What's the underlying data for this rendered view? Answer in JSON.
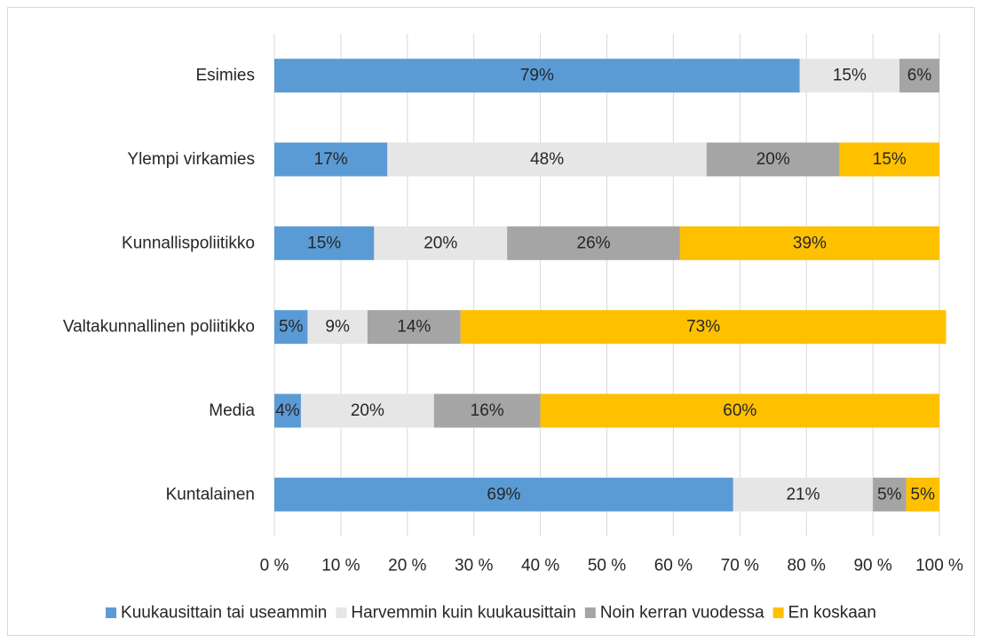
{
  "chart_data": {
    "type": "bar",
    "orientation": "horizontal",
    "stacked": "percent",
    "categories": [
      "Esimies",
      "Ylempi virkamies",
      "Kunnallispoliitikko",
      "Valtakunnallinen poliitikko",
      "Media",
      "Kuntalainen"
    ],
    "series": [
      {
        "name": "Kuukausittain tai useammin",
        "color": "#5b9bd5",
        "values": [
          79,
          17,
          15,
          5,
          4,
          69
        ]
      },
      {
        "name": "Harvemmin kuin kuukausittain",
        "color": "#e7e6e6",
        "values": [
          15,
          48,
          20,
          9,
          20,
          21
        ]
      },
      {
        "name": "Noin kerran vuodessa",
        "color": "#a5a5a5",
        "values": [
          6,
          20,
          26,
          14,
          16,
          5
        ]
      },
      {
        "name": "En koskaan",
        "color": "#ffc000",
        "values": [
          0,
          15,
          39,
          73,
          60,
          5
        ]
      }
    ],
    "xlim": [
      0,
      100
    ],
    "x_ticks": [
      "0 %",
      "10 %",
      "20 %",
      "30 %",
      "40 %",
      "50 %",
      "60 %",
      "70 %",
      "80 %",
      "90 %",
      "100 %"
    ],
    "grid": true,
    "legend_position": "bottom",
    "title": "",
    "xlabel": "",
    "ylabel": ""
  }
}
